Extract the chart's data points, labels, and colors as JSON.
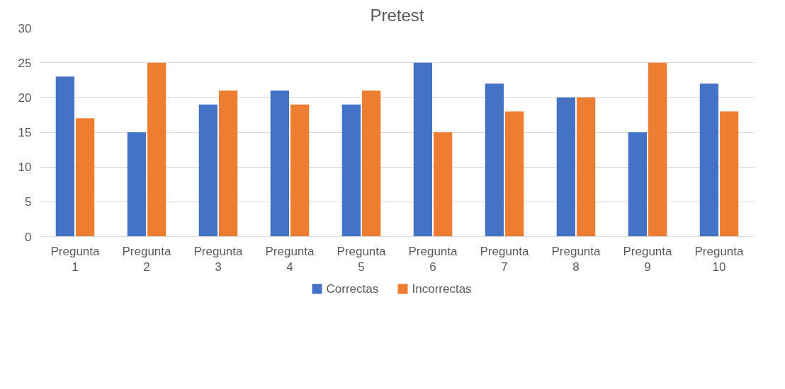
{
  "chart_data": {
    "type": "bar",
    "title": "Pretest",
    "categories": [
      "Pregunta 1",
      "Pregunta 2",
      "Pregunta 3",
      "Pregunta 4",
      "Pregunta 5",
      "Pregunta 6",
      "Pregunta 7",
      "Pregunta 8",
      "Pregunta 9",
      "Pregunta 10"
    ],
    "series": [
      {
        "name": "Correctas",
        "color": "#4472c4",
        "values": [
          23,
          15,
          19,
          21,
          19,
          25,
          22,
          20,
          15,
          22
        ]
      },
      {
        "name": "Incorrectas",
        "color": "#ed7d31",
        "values": [
          17,
          25,
          21,
          19,
          21,
          15,
          18,
          20,
          25,
          18
        ]
      }
    ],
    "ylim": [
      0,
      30
    ],
    "yticks": [
      0,
      5,
      10,
      15,
      20,
      25,
      30
    ],
    "grid": "y",
    "legend": "bottom"
  }
}
